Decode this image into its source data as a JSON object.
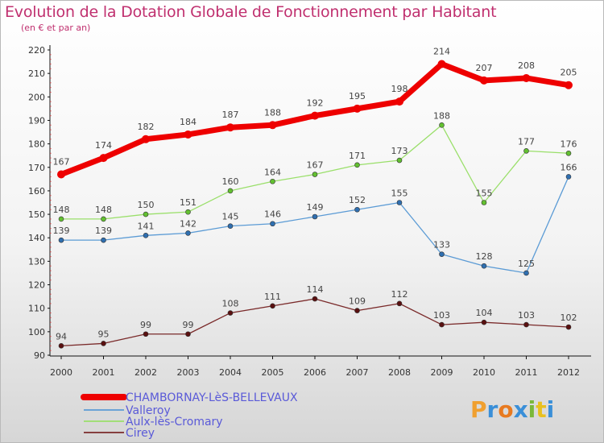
{
  "title": "Evolution de la Dotation Globale de Fonctionnement par Habitant",
  "subtitle": "(en € et par an)",
  "brand": {
    "letters": [
      "P",
      "r",
      "o",
      "x",
      "i",
      "t",
      "i"
    ],
    "colors": [
      "#f0a030",
      "#3a8fd8",
      "#e87a20",
      "#3a8fd8",
      "#7ab83a",
      "#e8c020",
      "#3a8fd8"
    ]
  },
  "chart_data": {
    "type": "line",
    "x": [
      "2000",
      "2001",
      "2002",
      "2003",
      "2004",
      "2005",
      "2006",
      "2007",
      "2008",
      "2009",
      "2010",
      "2011",
      "2012"
    ],
    "ylim": [
      90,
      220
    ],
    "yticks": [
      90,
      100,
      110,
      120,
      130,
      140,
      150,
      160,
      170,
      180,
      190,
      200,
      210,
      220
    ],
    "grid": false,
    "legend_position": "bottom",
    "series": [
      {
        "name": "CHAMBORNAY-LèS-BELLEVAUX",
        "color": "#ee0000",
        "marker": "#ee0000",
        "values": [
          167,
          174,
          182,
          184,
          187,
          188,
          192,
          195,
          198,
          214,
          207,
          208,
          205
        ]
      },
      {
        "name": "Valleroy",
        "color": "#5b9bd5",
        "marker": "#2f6fb0",
        "values": [
          139,
          139,
          141,
          142,
          145,
          146,
          149,
          152,
          155,
          133,
          128,
          125,
          166
        ]
      },
      {
        "name": "Aulx-lès-Cromary",
        "color": "#9adf6a",
        "marker": "#62c030",
        "values": [
          148,
          148,
          150,
          151,
          160,
          164,
          167,
          171,
          173,
          188,
          155,
          177,
          176
        ]
      },
      {
        "name": "Cirey",
        "color": "#7a2a2a",
        "marker": "#5a1010",
        "values": [
          94,
          95,
          99,
          99,
          108,
          111,
          114,
          109,
          112,
          103,
          104,
          103,
          102
        ]
      }
    ]
  }
}
